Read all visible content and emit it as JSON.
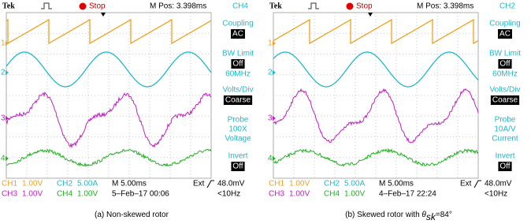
{
  "panels": [
    {
      "header": {
        "brand": "Tek",
        "status": "Stop",
        "position": "M Pos: 3.398ms",
        "channel": "CH4"
      },
      "markers": [
        "1",
        "2",
        "3",
        "4"
      ],
      "menu": [
        {
          "label": "Coupling",
          "value": "AC"
        },
        {
          "label": "BW Limit",
          "value": "Off",
          "note": "60MHz"
        },
        {
          "label": "Volts/Div",
          "value": "Coarse"
        },
        {
          "label": "Probe",
          "lines": [
            "100X",
            "Voltage"
          ]
        },
        {
          "label": "Invert",
          "value": "Off"
        }
      ],
      "footer": {
        "channels": [
          {
            "name": "CH1",
            "scale": "1.00V",
            "color": "#f0a020"
          },
          {
            "name": "CH2",
            "scale": "5.00A",
            "color": "#20b8c8"
          },
          {
            "name": "CH3",
            "scale": "1.00V",
            "color": "#c020c0"
          },
          {
            "name": "CH4",
            "scale": "1.00V",
            "color": "#20b020"
          }
        ],
        "timebase": "M 5.00ms",
        "trigger": "Ext",
        "trigger_level": "48.0mV",
        "date": "5–Feb–17 00:06",
        "frequency": "<10Hz"
      },
      "caption": {
        "text": "(a) Non-skewed rotor"
      }
    },
    {
      "header": {
        "brand": "Tek",
        "status": "Stop",
        "position": "M Pos: 3.398ms",
        "channel": "CH2"
      },
      "markers": [
        "1",
        "2",
        "3",
        "4"
      ],
      "menu": [
        {
          "label": "Coupling",
          "value": "AC"
        },
        {
          "label": "BW Limit",
          "value": "Off",
          "note": "60MHz"
        },
        {
          "label": "Volts/Div",
          "value": "Coarse"
        },
        {
          "label": "Probe",
          "lines": [
            "10A/V",
            "Current"
          ]
        },
        {
          "label": "Invert",
          "value": "Off"
        }
      ],
      "footer": {
        "channels": [
          {
            "name": "CH1",
            "scale": "1.00V",
            "color": "#f0a020"
          },
          {
            "name": "CH2",
            "scale": "5.00A",
            "color": "#20b8c8"
          },
          {
            "name": "CH3",
            "scale": "1.00V",
            "color": "#c020c0"
          },
          {
            "name": "CH4",
            "scale": "1.00V",
            "color": "#20b020"
          }
        ],
        "timebase": "M 5.00ms",
        "trigger": "Ext",
        "trigger_level": "48.0mV",
        "date": "4–Feb–17 22:24",
        "frequency": "<10Hz"
      },
      "caption": {
        "text": "(b) Skewed rotor with ",
        "symbol": "θ",
        "subscript": "sk",
        "value": "=84°"
      }
    }
  ]
}
